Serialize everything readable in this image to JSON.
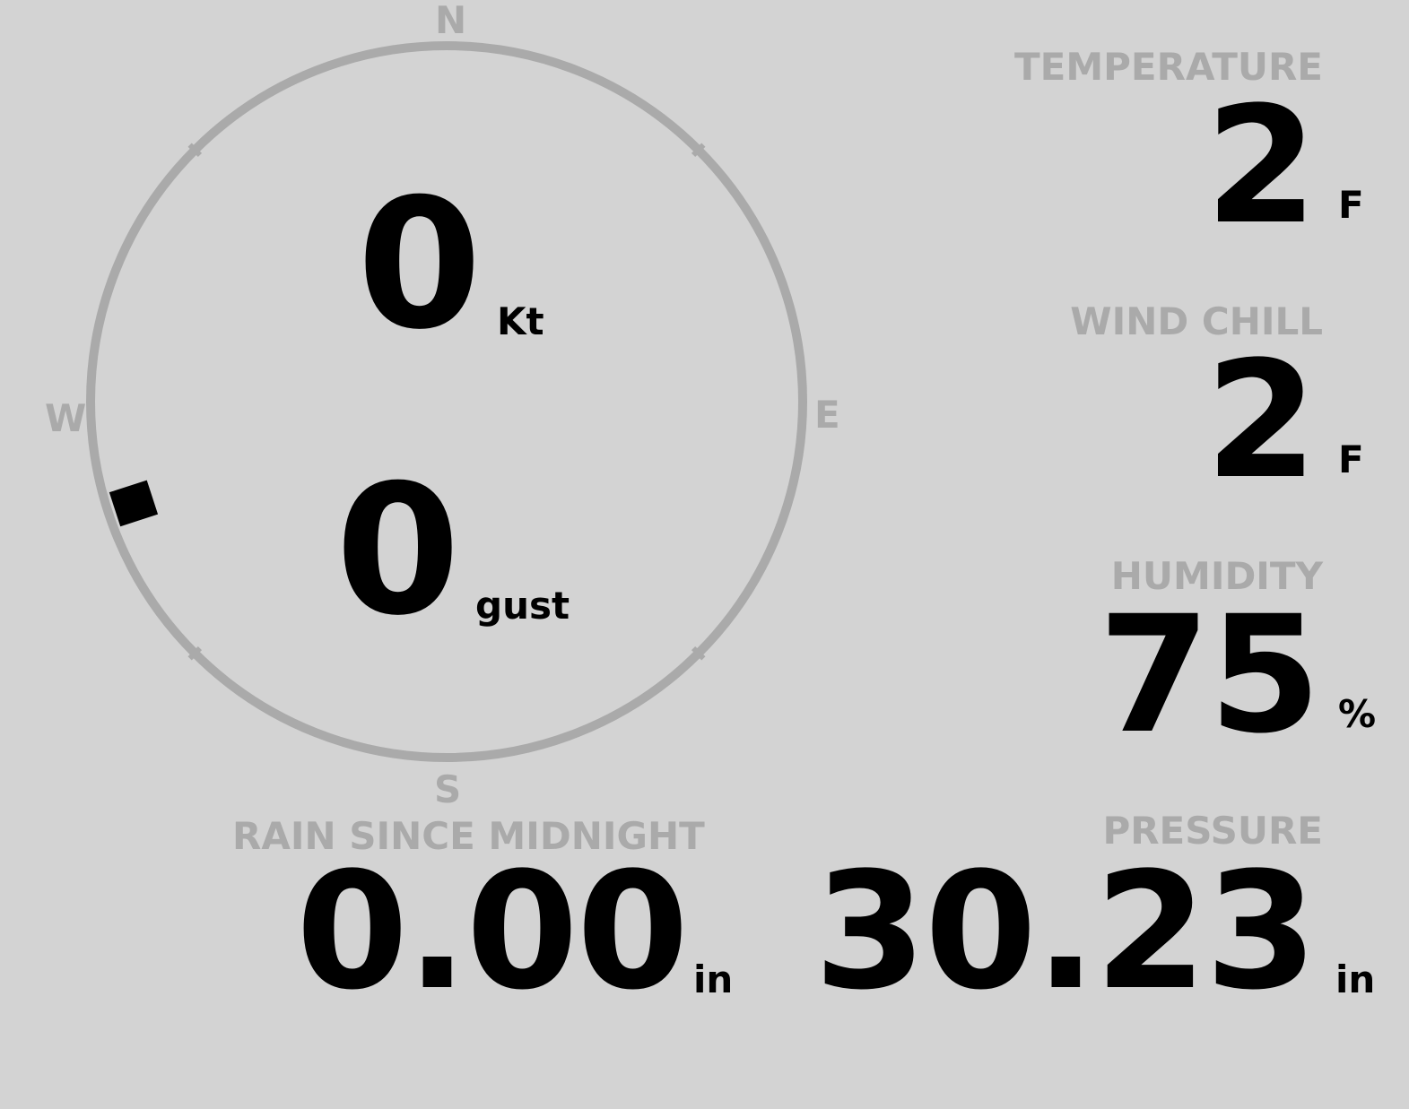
{
  "wind": {
    "speed": "0",
    "speed_unit": "Kt",
    "gust": "0",
    "gust_unit": "gust",
    "direction_deg": 252,
    "compass": {
      "n": "N",
      "e": "E",
      "s": "S",
      "w": "W"
    }
  },
  "temperature": {
    "label": "TEMPERATURE",
    "value": "2",
    "unit": "F"
  },
  "wind_chill": {
    "label": "WIND CHILL",
    "value": "2",
    "unit": "F"
  },
  "humidity": {
    "label": "HUMIDITY",
    "value": "75",
    "unit": "%"
  },
  "rain": {
    "label": "RAIN SINCE MIDNIGHT",
    "value": "0.00",
    "unit": "in"
  },
  "pressure": {
    "label": "PRESSURE",
    "value": "30.23",
    "unit": "in"
  },
  "colors": {
    "background": "#d3d3d3",
    "muted": "#aaaaaa",
    "value": "#000000"
  }
}
